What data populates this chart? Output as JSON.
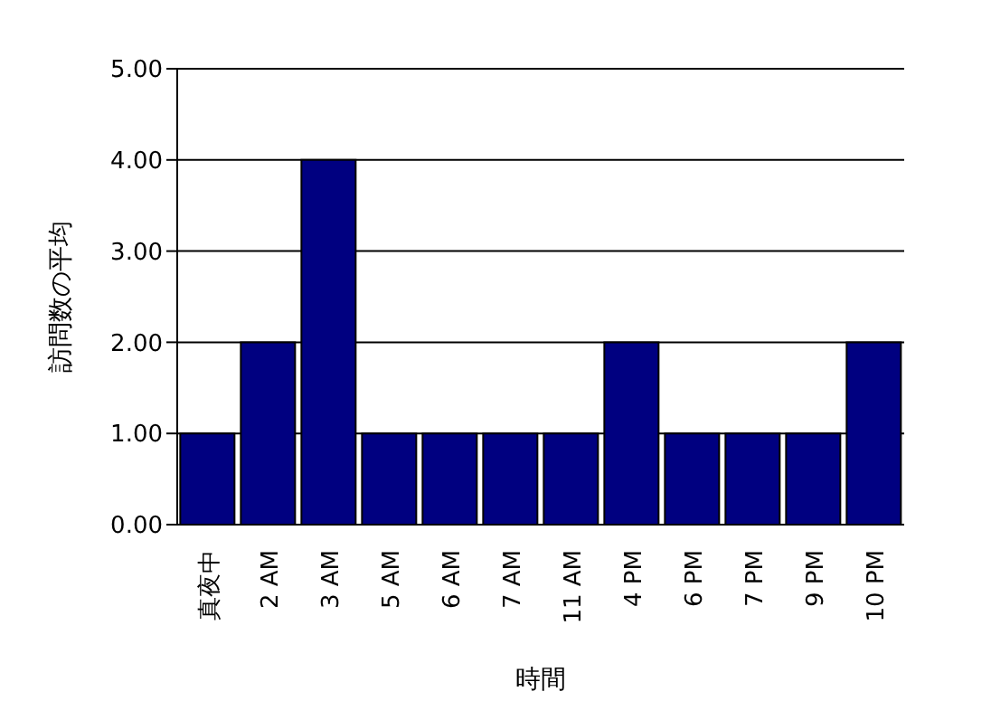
{
  "chart_data": {
    "type": "bar",
    "xlabel": "時間",
    "ylabel": "訪問数の平均",
    "categories": [
      "真夜中",
      "2 AM",
      "3 AM",
      "5 AM",
      "6 AM",
      "7 AM",
      "11 AM",
      "4 PM",
      "6 PM",
      "7 PM",
      "9 PM",
      "10 PM"
    ],
    "values": [
      1,
      2,
      4,
      1,
      1,
      1,
      1,
      2,
      1,
      1,
      1,
      2
    ],
    "color": "#000080",
    "ylim": [
      0,
      5
    ],
    "yticks": [
      {
        "value": 0,
        "label": "0.00"
      },
      {
        "value": 1,
        "label": "1.00"
      },
      {
        "value": 2,
        "label": "2.00"
      },
      {
        "value": 3,
        "label": "3.00"
      },
      {
        "value": 4,
        "label": "4.00"
      },
      {
        "value": 5,
        "label": "5.00"
      }
    ],
    "grid": "y"
  }
}
